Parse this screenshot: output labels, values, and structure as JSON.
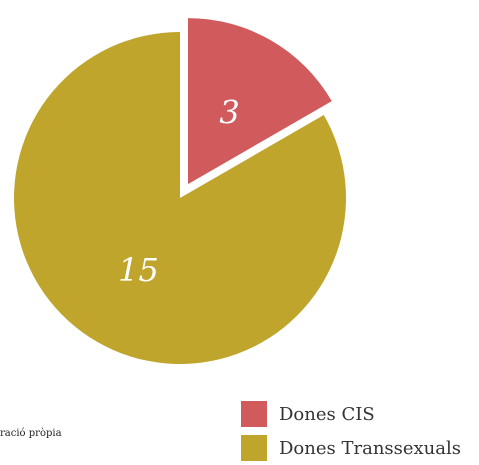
{
  "chart_data": {
    "type": "pie",
    "categories": [
      "Dones CIS",
      "Dones Transsexuals"
    ],
    "values": [
      3,
      15
    ],
    "colors": [
      "#d05a5c",
      "#bfa52c"
    ],
    "exploded": [
      "Dones CIS"
    ],
    "legend_placement": "bottom-right",
    "source": "oració pròpia"
  }
}
